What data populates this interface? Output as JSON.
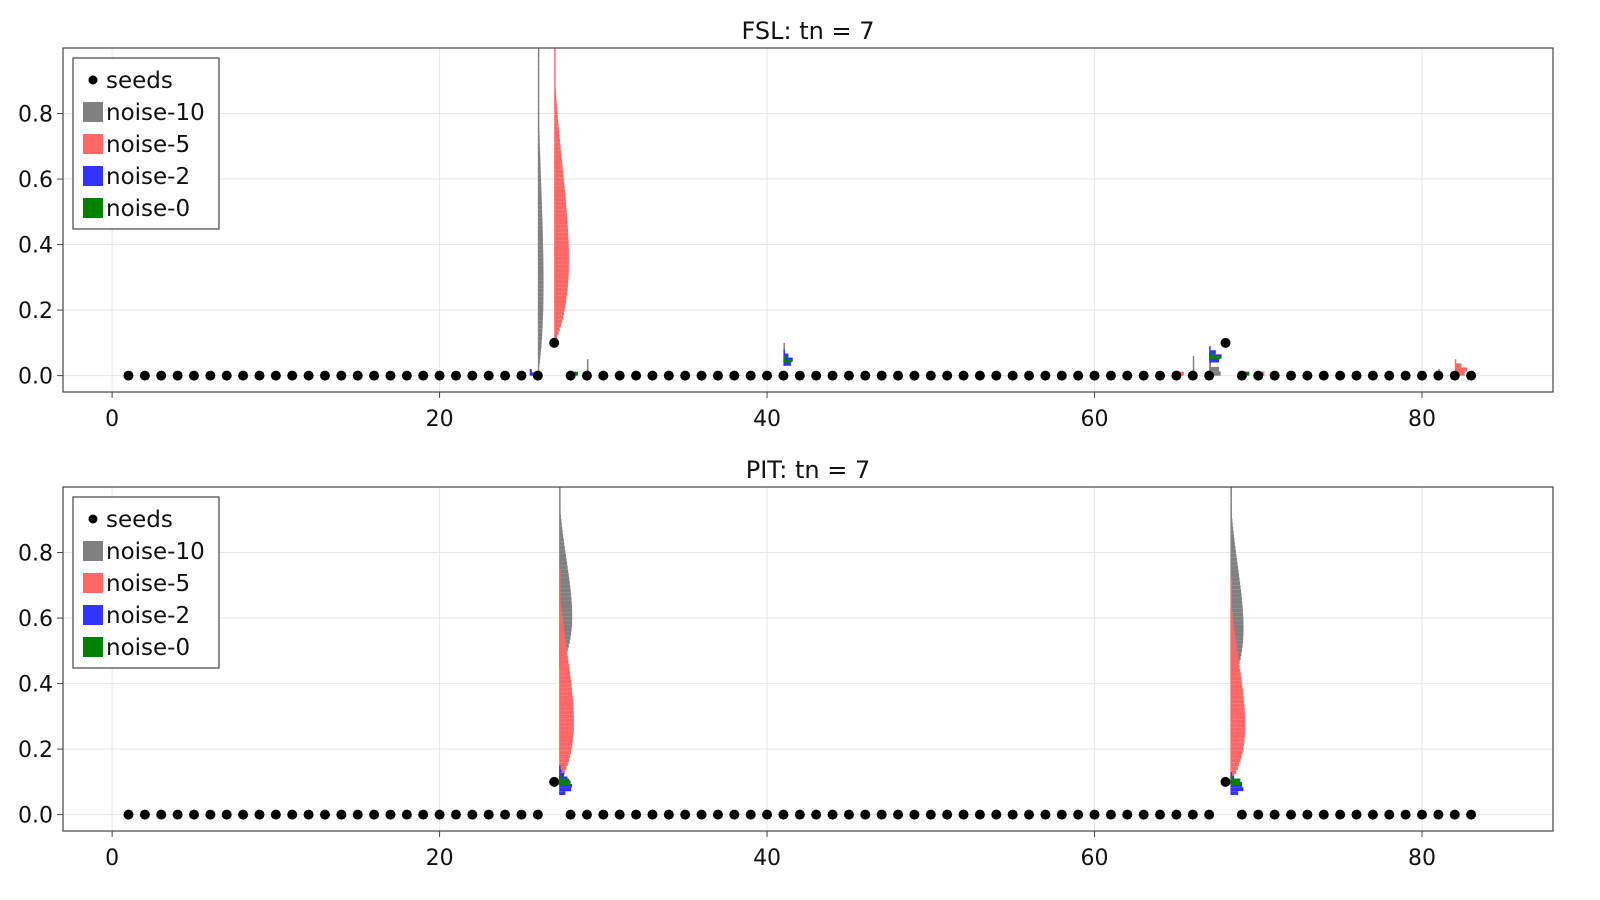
{
  "chart_data": [
    {
      "type": "scatter",
      "title": "FSL: tn = 7",
      "xlim": [
        -3,
        88
      ],
      "ylim": [
        -0.05,
        1.0
      ],
      "xticks": [
        0,
        20,
        40,
        60,
        80
      ],
      "yticks": [
        0.0,
        0.2,
        0.4,
        0.6,
        0.8
      ],
      "xtick_labels": [
        "0",
        "20",
        "40",
        "60",
        "80"
      ],
      "ytick_labels": [
        "0.0",
        "0.2",
        "0.4",
        "0.6",
        "0.8"
      ],
      "grid": true,
      "legend": {
        "position": "top-left",
        "entries": [
          {
            "label": "seeds",
            "marker": "dot",
            "color": "#000000"
          },
          {
            "label": "noise-10",
            "marker": "square",
            "color": "#808080"
          },
          {
            "label": "noise-5",
            "marker": "square",
            "color": "#ff6666"
          },
          {
            "label": "noise-2",
            "marker": "square",
            "color": "#3333ff"
          },
          {
            "label": "noise-0",
            "marker": "square",
            "color": "#008000"
          }
        ]
      },
      "seeds": {
        "x_range": [
          1,
          83
        ],
        "baseline": 0.0,
        "elevated": [
          {
            "x": 27,
            "y": 0.1
          },
          {
            "x": 68,
            "y": 0.1
          }
        ],
        "omitted": [
          27,
          68
        ]
      },
      "distributions": [
        {
          "series": "noise-10",
          "x": 26,
          "range": [
            0.0,
            1.0
          ],
          "peak_width": 0.35
        },
        {
          "series": "noise-5",
          "x": 27,
          "range": [
            0.1,
            1.0
          ],
          "peak_width": 0.9
        },
        {
          "series": "noise-2",
          "x": 25.5,
          "range": [
            0.0,
            0.02
          ],
          "peak_width": 0.5
        },
        {
          "series": "noise-0",
          "x": 28,
          "range": [
            0.0,
            0.01
          ],
          "peak_width": 0.6
        },
        {
          "series": "noise-10",
          "x": 29,
          "range": [
            0.0,
            0.05
          ],
          "peak_width": 0.1
        },
        {
          "series": "noise-10",
          "x": 41,
          "range": [
            0.03,
            0.1
          ],
          "peak_width": 0.15
        },
        {
          "series": "noise-2",
          "x": 41,
          "range": [
            0.03,
            0.08
          ],
          "peak_width": 0.6
        },
        {
          "series": "noise-0",
          "x": 41,
          "range": [
            0.04,
            0.06
          ],
          "peak_width": 0.5
        },
        {
          "series": "noise-10",
          "x": 66,
          "range": [
            0.0,
            0.06
          ],
          "peak_width": 0.1
        },
        {
          "series": "noise-10",
          "x": 67,
          "range": [
            0.0,
            0.04
          ],
          "peak_width": 0.8
        },
        {
          "series": "noise-2",
          "x": 67,
          "range": [
            0.04,
            0.09
          ],
          "peak_width": 0.8
        },
        {
          "series": "noise-0",
          "x": 67,
          "range": [
            0.05,
            0.07
          ],
          "peak_width": 0.7
        },
        {
          "series": "noise-5",
          "x": 65,
          "range": [
            0.0,
            0.01
          ],
          "peak_width": 0.6
        },
        {
          "series": "noise-0",
          "x": 69,
          "range": [
            0.0,
            0.01
          ],
          "peak_width": 0.6
        },
        {
          "series": "noise-5",
          "x": 70,
          "range": [
            0.0,
            0.01
          ],
          "peak_width": 0.5
        },
        {
          "series": "noise-5",
          "x": 82,
          "range": [
            0.0,
            0.05
          ],
          "peak_width": 0.8
        },
        {
          "series": "noise-10",
          "x": 81,
          "range": [
            0.0,
            0.02
          ],
          "peak_width": 0.1
        }
      ]
    },
    {
      "type": "scatter",
      "title": "PIT: tn = 7",
      "xlim": [
        -3,
        88
      ],
      "ylim": [
        -0.05,
        1.0
      ],
      "xticks": [
        0,
        20,
        40,
        60,
        80
      ],
      "yticks": [
        0.0,
        0.2,
        0.4,
        0.6,
        0.8
      ],
      "xtick_labels": [
        "0",
        "20",
        "40",
        "60",
        "80"
      ],
      "ytick_labels": [
        "0.0",
        "0.2",
        "0.4",
        "0.6",
        "0.8"
      ],
      "grid": true,
      "legend": {
        "position": "top-left",
        "entries": [
          {
            "label": "seeds",
            "marker": "dot",
            "color": "#000000"
          },
          {
            "label": "noise-10",
            "marker": "square",
            "color": "#808080"
          },
          {
            "label": "noise-5",
            "marker": "square",
            "color": "#ff6666"
          },
          {
            "label": "noise-2",
            "marker": "square",
            "color": "#3333ff"
          },
          {
            "label": "noise-0",
            "marker": "square",
            "color": "#008000"
          }
        ]
      },
      "seeds": {
        "x_range": [
          1,
          83
        ],
        "baseline": 0.0,
        "elevated": [
          {
            "x": 27,
            "y": 0.1
          },
          {
            "x": 68,
            "y": 0.1
          }
        ],
        "omitted": [
          27,
          68
        ]
      },
      "distributions": [
        {
          "series": "noise-10",
          "x": 27.3,
          "range": [
            0.45,
            1.0
          ],
          "peak_width": 0.8
        },
        {
          "series": "noise-5",
          "x": 27.3,
          "range": [
            0.1,
            0.75
          ],
          "peak_width": 0.9
        },
        {
          "series": "noise-2",
          "x": 27.3,
          "range": [
            0.06,
            0.15
          ],
          "peak_width": 0.8
        },
        {
          "series": "noise-0",
          "x": 27.3,
          "range": [
            0.09,
            0.12
          ],
          "peak_width": 0.8
        },
        {
          "series": "noise-10",
          "x": 68.3,
          "range": [
            0.4,
            1.0
          ],
          "peak_width": 0.8
        },
        {
          "series": "noise-5",
          "x": 68.3,
          "range": [
            0.1,
            0.72
          ],
          "peak_width": 0.9
        },
        {
          "series": "noise-2",
          "x": 68.3,
          "range": [
            0.06,
            0.13
          ],
          "peak_width": 0.8
        },
        {
          "series": "noise-0",
          "x": 68.3,
          "range": [
            0.09,
            0.12
          ],
          "peak_width": 0.8
        }
      ]
    }
  ]
}
